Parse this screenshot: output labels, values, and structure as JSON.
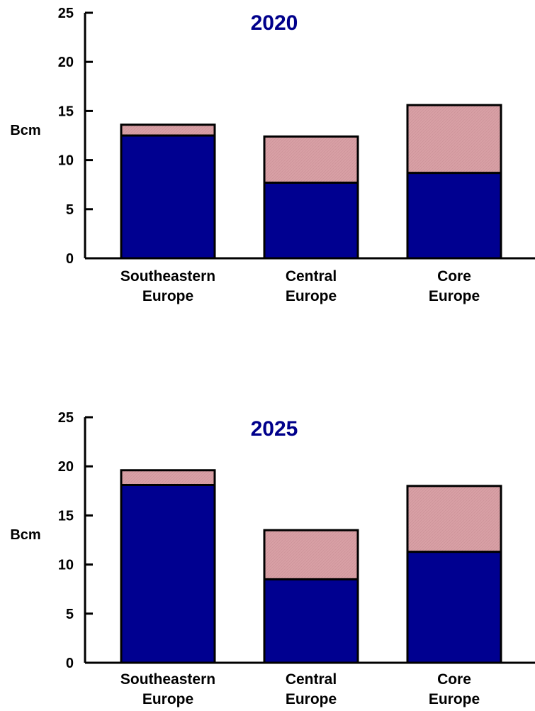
{
  "colors": {
    "base": "#000090",
    "top": "#d8a0a5",
    "title": "#00008b",
    "axis": "#000000"
  },
  "chart_data": [
    {
      "type": "bar",
      "stacked": true,
      "title": "2020",
      "ylabel": "Bcm",
      "xlabel": "",
      "ylim": [
        0,
        25
      ],
      "yticks": [
        0,
        5,
        10,
        15,
        20,
        25
      ],
      "categories": [
        [
          "Southeastern",
          "Europe"
        ],
        [
          "Central",
          "Europe"
        ],
        [
          "Core",
          "Europe"
        ]
      ],
      "series": [
        {
          "values": [
            12.5,
            7.7,
            8.7
          ]
        },
        {
          "values": [
            1.1,
            4.7,
            6.9
          ]
        }
      ],
      "grid": false,
      "legend": "none"
    },
    {
      "type": "bar",
      "stacked": true,
      "title": "2025",
      "ylabel": "Bcm",
      "xlabel": "",
      "ylim": [
        0,
        25
      ],
      "yticks": [
        0,
        5,
        10,
        15,
        20,
        25
      ],
      "categories": [
        [
          "Southeastern",
          "Europe"
        ],
        [
          "Central",
          "Europe"
        ],
        [
          "Core",
          "Europe"
        ]
      ],
      "series": [
        {
          "values": [
            18.1,
            8.5,
            11.3
          ]
        },
        {
          "values": [
            1.5,
            5.0,
            6.7
          ]
        }
      ],
      "grid": false,
      "legend": "none"
    }
  ]
}
